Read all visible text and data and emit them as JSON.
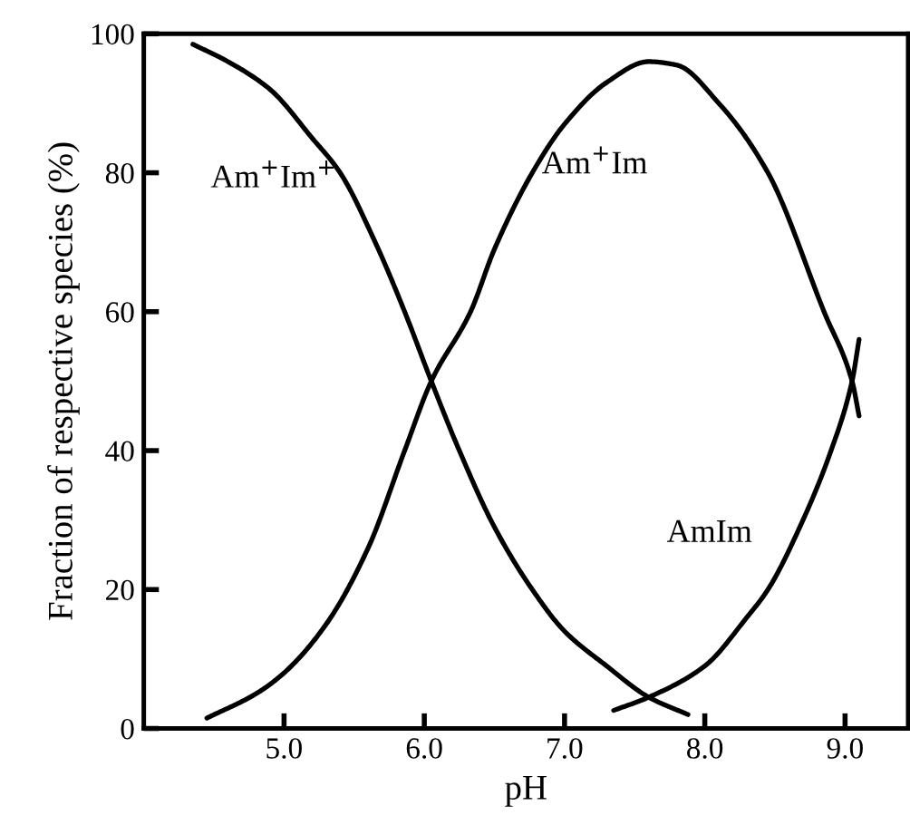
{
  "chart_data": {
    "type": "line",
    "xlabel": "pH",
    "ylabel": "Fraction of respective species (%)",
    "series": [
      {
        "name": "Am$^{+}$Im$^{+}$",
        "color": "#000000",
        "x": [
          4.35,
          4.6,
          4.9,
          5.2,
          5.4,
          5.65,
          5.86,
          6.05,
          6.25,
          6.5,
          6.77,
          7.0,
          7.3,
          7.6,
          7.88
        ],
        "values": [
          98.5,
          96,
          92,
          85,
          80,
          70,
          60,
          50,
          40,
          29,
          20,
          14,
          9,
          4.5,
          2
        ]
      },
      {
        "name": "Am$^{+}$Im",
        "color": "#000000",
        "x": [
          4.45,
          4.8,
          5.0,
          5.3,
          5.6,
          5.86,
          6.05,
          6.33,
          6.5,
          6.77,
          7.0,
          7.3,
          7.6,
          7.8,
          8.1,
          8.45,
          8.85,
          9.05,
          9.1
        ],
        "values": [
          1.5,
          5,
          8,
          15,
          26,
          40,
          50,
          60,
          69,
          80,
          87,
          93,
          96,
          95.5,
          90,
          80,
          60,
          50,
          45
        ]
      },
      {
        "name": "AmIm",
        "color": "#000000",
        "x": [
          7.35,
          7.6,
          8.0,
          8.3,
          8.45,
          8.7,
          8.9,
          9.05,
          9.1
        ],
        "values": [
          2.6,
          4.5,
          9,
          16,
          20,
          30,
          40,
          50,
          56
        ]
      }
    ],
    "xlim": [
      4.0,
      9.45
    ],
    "ylim": [
      0,
      100
    ],
    "xticks": [
      {
        "value": 5,
        "label": "5.0"
      },
      {
        "value": 6,
        "label": "6.0"
      },
      {
        "value": 7,
        "label": "7.0"
      },
      {
        "value": 8,
        "label": "8.0"
      },
      {
        "value": 9,
        "label": "9.0"
      }
    ],
    "yticks": [
      0,
      20,
      40,
      60,
      80,
      100
    ],
    "grid": false,
    "legend": false,
    "marker": "none",
    "line_style": "solid"
  }
}
